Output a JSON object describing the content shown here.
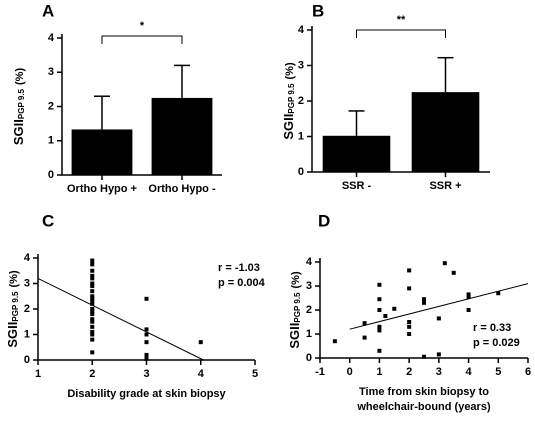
{
  "chart_data": [
    {
      "type": "bar",
      "panel": "A",
      "categories": [
        "Ortho Hypo +",
        "Ortho Hypo -"
      ],
      "values": [
        1.33,
        2.25
      ],
      "errors": [
        0.97,
        0.95
      ],
      "color": "#000000",
      "y_label": {
        "main": "SGII",
        "sub": "PGP 9.5",
        "unit": "(%)"
      },
      "ylim": [
        0,
        4
      ],
      "yticks": [
        0,
        1,
        2,
        3,
        4
      ],
      "significance": "*"
    },
    {
      "type": "bar",
      "panel": "B",
      "categories": [
        "SSR -",
        "SSR +"
      ],
      "values": [
        1.02,
        2.25
      ],
      "errors": [
        0.7,
        0.97
      ],
      "color": "#000000",
      "y_label": {
        "main": "SGII",
        "sub": "PGP 9.5",
        "unit": "(%)"
      },
      "ylim": [
        0,
        4
      ],
      "yticks": [
        0,
        1,
        2,
        3,
        4
      ],
      "significance": "**"
    },
    {
      "type": "scatter",
      "panel": "C",
      "x_label": [
        "Disability grade at skin biopsy"
      ],
      "y_label": {
        "main": "SGII",
        "sub": "PGP 9.5",
        "unit": "(%)"
      },
      "x": [
        2,
        2,
        2,
        2,
        2,
        2,
        2,
        2,
        2,
        2,
        2,
        2,
        2,
        2,
        2,
        2,
        2,
        2,
        2,
        2,
        2,
        2,
        3,
        3,
        3,
        3,
        3,
        3,
        4
      ],
      "values": [
        3.9,
        3.75,
        3.5,
        3.3,
        3.2,
        3.0,
        2.9,
        2.7,
        2.5,
        2.4,
        2.3,
        2.2,
        2.0,
        1.9,
        1.8,
        1.6,
        1.5,
        1.3,
        1.1,
        1.0,
        0.8,
        0.3,
        2.4,
        1.2,
        1.0,
        0.7,
        0.2,
        0.05,
        0.7
      ],
      "fit": {
        "x": [
          1,
          4.05
        ],
        "y": [
          3.2,
          0
        ]
      },
      "annotations": [
        "r = -1.03",
        "p = 0.004"
      ],
      "xlim": [
        1,
        5
      ],
      "xticks": [
        1,
        2,
        3,
        4,
        5
      ],
      "ylim": [
        0,
        4
      ],
      "yticks": [
        0,
        1,
        2,
        3,
        4
      ],
      "color": "#000000"
    },
    {
      "type": "scatter",
      "panel": "D",
      "x_label": [
        "Time from skin biopsy to",
        "wheelchair-bound (years)"
      ],
      "y_label": {
        "main": "SGII",
        "sub": "PGP 9.5",
        "unit": "(%)"
      },
      "x": [
        -0.5,
        0.5,
        0.5,
        1,
        1,
        1,
        1,
        1,
        1,
        1.2,
        1.5,
        2,
        2,
        2,
        2,
        2,
        2.5,
        2.5,
        2.5,
        3,
        3,
        3.2,
        3.5,
        4,
        4,
        4,
        5
      ],
      "values": [
        0.7,
        0.85,
        1.45,
        3.05,
        2.45,
        2.0,
        1.3,
        1.15,
        0.3,
        1.75,
        2.05,
        3.65,
        2.9,
        1.5,
        1.3,
        1.0,
        2.45,
        2.3,
        0.05,
        1.65,
        0.15,
        3.95,
        3.55,
        2.65,
        2.55,
        2.0,
        2.7
      ],
      "fit": {
        "x": [
          0,
          6
        ],
        "y": [
          1.2,
          3.1
        ]
      },
      "annotations": [
        "r = 0.33",
        "p = 0.029"
      ],
      "xlim": [
        -1,
        6
      ],
      "xticks": [
        -1,
        0,
        1,
        2,
        3,
        4,
        5,
        6
      ],
      "ylim": [
        0,
        4
      ],
      "yticks": [
        0,
        1,
        2,
        3,
        4
      ],
      "color": "#000000"
    }
  ]
}
